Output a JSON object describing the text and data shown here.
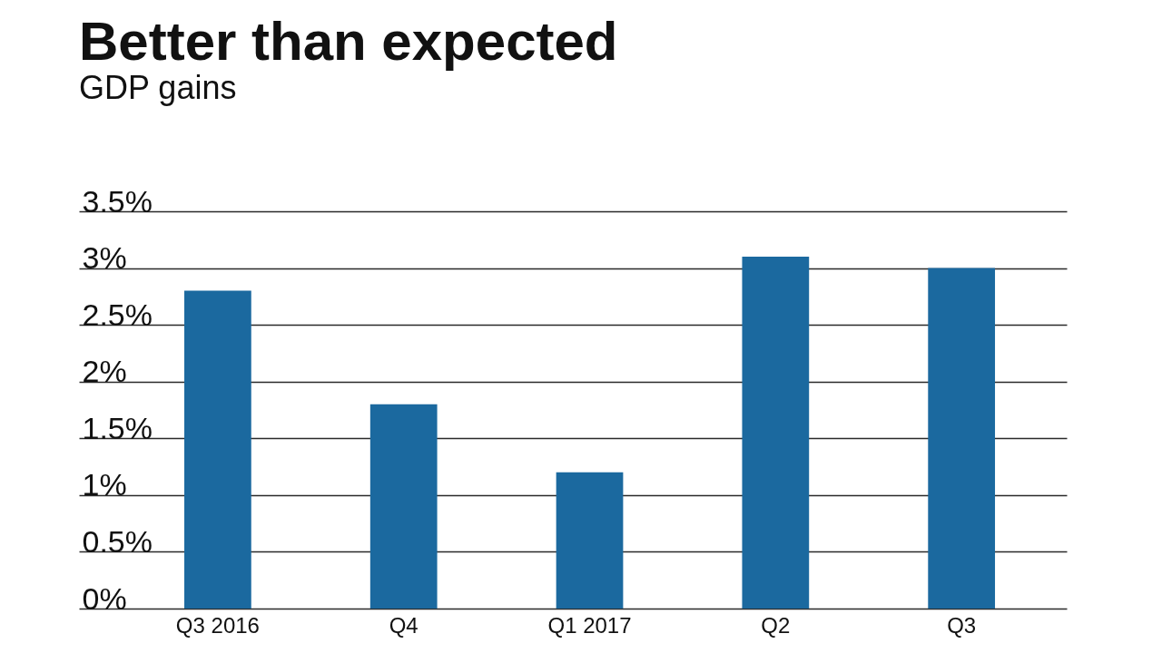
{
  "chart_data": {
    "type": "bar",
    "title": "Better than expected",
    "subtitle": "GDP gains",
    "categories": [
      "Q3 2016",
      "Q4",
      "Q1 2017",
      "Q2",
      "Q3"
    ],
    "values": [
      2.8,
      1.8,
      1.2,
      3.1,
      3.0
    ],
    "color": "#1b699f",
    "ylim": [
      0,
      3.5
    ],
    "yticks": [
      {
        "value": 0,
        "label": "0%"
      },
      {
        "value": 0.5,
        "label": "0.5%"
      },
      {
        "value": 1,
        "label": "1%"
      },
      {
        "value": 1.5,
        "label": "1.5%"
      },
      {
        "value": 2,
        "label": "2%"
      },
      {
        "value": 2.5,
        "label": "2.5%"
      },
      {
        "value": 3,
        "label": "3%"
      },
      {
        "value": 3.5,
        "label": "3.5%"
      }
    ],
    "grid": "y"
  }
}
